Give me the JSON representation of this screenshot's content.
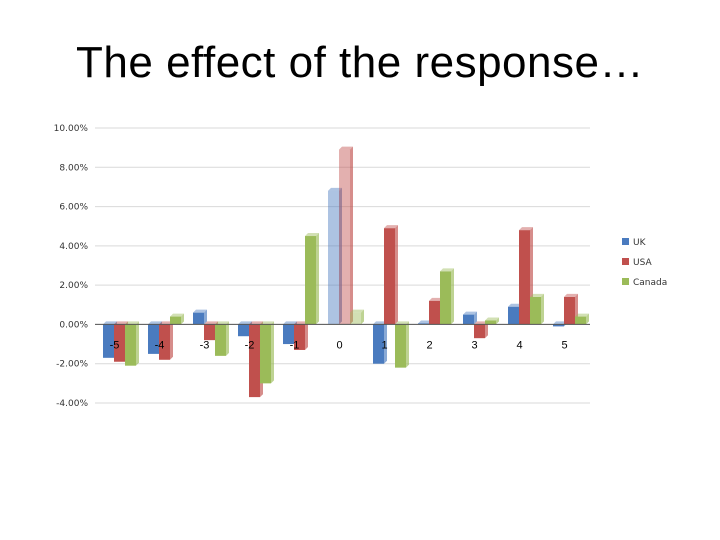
{
  "slide": {
    "title": "The effect of the response…"
  },
  "chart_data": {
    "type": "bar",
    "title": "",
    "xlabel": "",
    "ylabel": "",
    "ylim": [
      -4,
      10
    ],
    "yticks": [
      "10.00%",
      "8.00%",
      "6.00%",
      "4.00%",
      "2.00%",
      "0.00%",
      "-2.00%",
      "-4.00%"
    ],
    "ytick_values": [
      10,
      8,
      6,
      4,
      2,
      0,
      -2,
      -4
    ],
    "grid": true,
    "legend_position": "right",
    "categories": [
      "-5",
      "-4",
      "-3",
      "-2",
      "-1",
      "0",
      "1",
      "2",
      "3",
      "4",
      "5"
    ],
    "series": [
      {
        "name": "UK",
        "color": "#4a7bbf",
        "values": [
          -1.7,
          -1.5,
          0.6,
          -0.6,
          -1.0,
          6.8,
          -2.0,
          0.05,
          0.5,
          0.9,
          -0.1
        ]
      },
      {
        "name": "USA",
        "color": "#c0504d",
        "values": [
          -1.9,
          -1.8,
          -0.8,
          -3.7,
          -1.3,
          8.9,
          4.9,
          1.2,
          -0.7,
          4.8,
          1.4
        ]
      },
      {
        "name": "Canada",
        "color": "#9bbb59",
        "values": [
          -2.1,
          0.4,
          -1.6,
          -3.0,
          4.5,
          0.6,
          -2.2,
          2.7,
          0.2,
          1.4,
          0.4
        ]
      }
    ]
  }
}
